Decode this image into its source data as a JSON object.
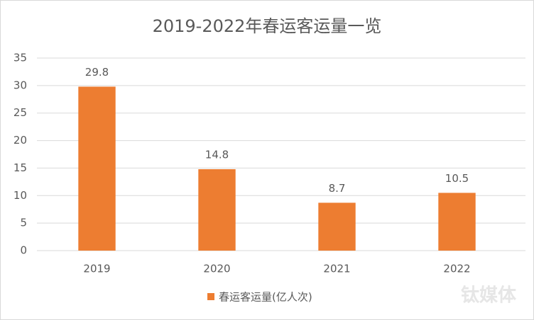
{
  "chart_data": {
    "type": "bar",
    "title": "2019-2022年春运客运量一览",
    "categories": [
      "2019",
      "2020",
      "2021",
      "2022"
    ],
    "series": [
      {
        "name": "春运客运量(亿人次)",
        "color": "#ed7d31",
        "values": [
          29.8,
          14.8,
          8.7,
          10.5
        ]
      }
    ],
    "ylim": [
      0,
      35
    ],
    "yticks": [
      0,
      5,
      10,
      15,
      20,
      25,
      30,
      35
    ],
    "grid": true,
    "legend": "bottom",
    "watermark": "钛媒体"
  }
}
